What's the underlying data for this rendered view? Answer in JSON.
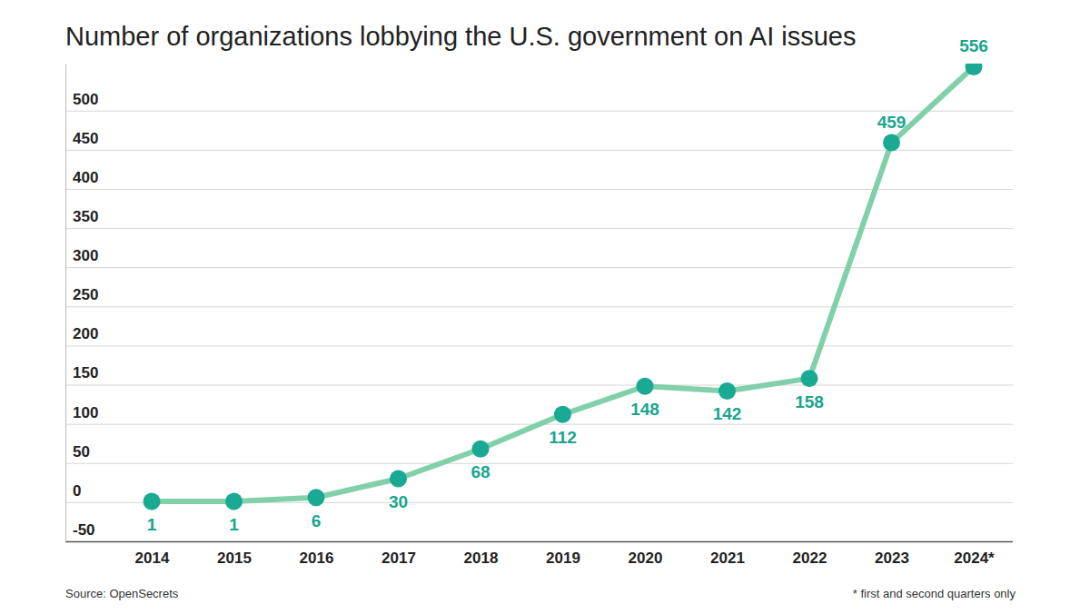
{
  "chart_data": {
    "type": "line",
    "title": "Number of organizations lobbying the U.S. government on AI issues",
    "categories": [
      "2014",
      "2015",
      "2016",
      "2017",
      "2018",
      "2019",
      "2020",
      "2021",
      "2022",
      "2023",
      "2024*"
    ],
    "values": [
      1,
      1,
      6,
      30,
      68,
      112,
      148,
      142,
      158,
      459,
      556
    ],
    "color": "#82d0ab",
    "marker": "circle",
    "ylim": [
      -50,
      560
    ],
    "yticks": [
      -50,
      0,
      50,
      100,
      150,
      200,
      250,
      300,
      350,
      400,
      450,
      500
    ],
    "grid": true,
    "data_labels": true,
    "source": "Source: OpenSecrets",
    "footnote": "* first and second quarters only"
  }
}
